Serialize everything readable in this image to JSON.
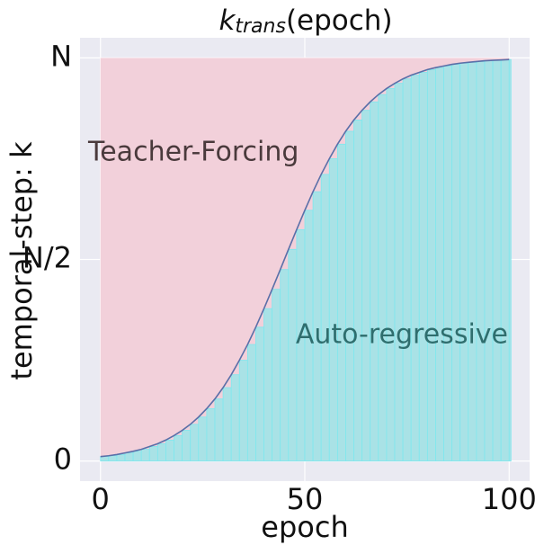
{
  "chart_data": {
    "type": "area",
    "title": {
      "base": "k",
      "sub": "trans",
      "rest": "(epoch)"
    },
    "xlabel": "epoch",
    "ylabel": "temporal-step: k",
    "annotations": [
      {
        "text": "Teacher-Forcing",
        "color": "#4a3a3c"
      },
      {
        "text": "Auto-regressive",
        "color": "#2f6e6e"
      }
    ],
    "x": [
      0,
      2,
      4,
      6,
      8,
      10,
      12,
      14,
      16,
      18,
      20,
      22,
      24,
      26,
      28,
      30,
      32,
      34,
      36,
      38,
      40,
      42,
      44,
      46,
      48,
      50,
      52,
      54,
      56,
      58,
      60,
      62,
      64,
      66,
      68,
      70,
      72,
      74,
      76,
      78,
      80,
      82,
      84,
      86,
      88,
      90,
      92,
      94,
      96,
      98,
      100
    ],
    "values": [
      0.011,
      0.013,
      0.016,
      0.02,
      0.024,
      0.029,
      0.036,
      0.043,
      0.052,
      0.063,
      0.076,
      0.091,
      0.109,
      0.13,
      0.154,
      0.182,
      0.214,
      0.25,
      0.289,
      0.332,
      0.378,
      0.426,
      0.475,
      0.525,
      0.574,
      0.622,
      0.668,
      0.711,
      0.75,
      0.786,
      0.818,
      0.846,
      0.87,
      0.891,
      0.909,
      0.924,
      0.937,
      0.948,
      0.957,
      0.964,
      0.971,
      0.976,
      0.98,
      0.984,
      0.987,
      0.989,
      0.991,
      0.993,
      0.994,
      0.995,
      0.996
    ],
    "line_color": "#5a6fa8",
    "area_color": "#a9e2e6",
    "bar_edge_color": "#7ee8ee",
    "background_color": "#f2d0da",
    "xlim": [
      -5,
      105
    ],
    "ylim": [
      -0.05,
      1.05
    ],
    "xticks": [
      0,
      50,
      100
    ],
    "yticks": [
      0,
      {
        "value": 0.5,
        "label": "N/2"
      },
      {
        "value": 1,
        "label": "N"
      }
    ],
    "grid": true
  }
}
